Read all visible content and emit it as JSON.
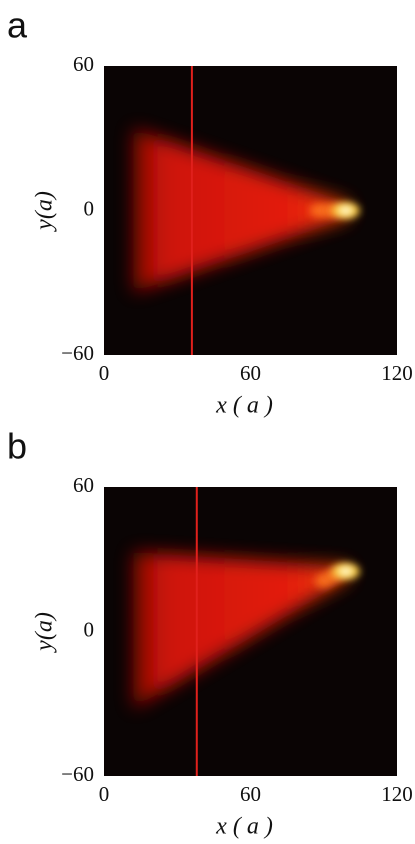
{
  "chart_data": [
    {
      "type": "heatmap",
      "label": "a",
      "xlabel": "x ( a )",
      "ylabel": "y(a)",
      "xlim": [
        0,
        120
      ],
      "ylim": [
        -60,
        60
      ],
      "xticks": [
        0,
        60,
        120
      ],
      "yticks": [
        {
          "value": -60,
          "label": "−60"
        },
        0,
        60
      ],
      "vline_x": 36,
      "vline_color": "#e0201c"
    },
    {
      "type": "heatmap",
      "label": "b",
      "xlabel": "x ( a )",
      "ylabel": "y(a)",
      "xlim": [
        0,
        120
      ],
      "ylim": [
        -60,
        60
      ],
      "xticks": [
        0,
        60,
        120
      ],
      "yticks": [
        {
          "value": -60,
          "label": "−60"
        },
        0,
        60
      ],
      "vline_x": 38,
      "vline_color": "#e0201c"
    }
  ]
}
